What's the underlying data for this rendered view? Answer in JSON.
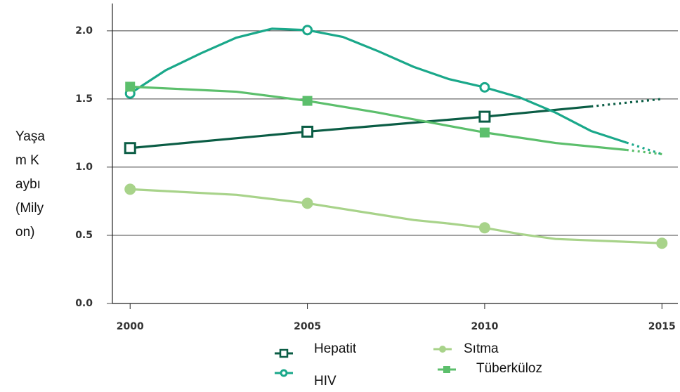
{
  "chart_data": {
    "type": "line",
    "ylabel": "Yaşam Kaybı (Milyon)",
    "xlim": [
      1999.5,
      2015.45
    ],
    "xticks": [
      2000,
      2005,
      2010,
      2015
    ],
    "ylim": [
      0,
      2.2
    ],
    "yticks": [
      {
        "value": 0,
        "label": "0.0"
      },
      0.5,
      {
        "value": 1,
        "label": "1.0"
      },
      1.5,
      {
        "value": 2,
        "label": "2.0"
      }
    ],
    "grid": true,
    "series": [
      {
        "name": "Hepatit",
        "color": "#0b5d45",
        "marker": "square",
        "marker_fill": "open",
        "x": [
          2000,
          2005,
          2010,
          2013,
          2015
        ],
        "values": [
          1.14,
          1.26,
          1.37,
          1.445,
          1.5
        ],
        "marker_x": [
          2000,
          2005,
          2010
        ],
        "dashed_from": 2013
      },
      {
        "name": "HIV",
        "color": "#1aa88a",
        "marker": "circle",
        "marker_fill": "open",
        "x": [
          2000,
          2001,
          2002,
          2003,
          2004,
          2005,
          2006,
          2007,
          2008,
          2009,
          2010,
          2011,
          2012,
          2013,
          2014,
          2015
        ],
        "values": [
          1.54,
          1.71,
          1.835,
          1.95,
          2.015,
          2.005,
          1.955,
          1.85,
          1.735,
          1.645,
          1.585,
          1.51,
          1.4,
          1.265,
          1.18,
          1.095
        ],
        "marker_x": [
          2000,
          2005,
          2010
        ],
        "dashed_from": 2014
      },
      {
        "name": "Sıtma",
        "color": "#a8d38a",
        "marker": "circle",
        "marker_fill": "filled",
        "x": [
          2000,
          2003,
          2005,
          2007,
          2008,
          2009,
          2010,
          2011,
          2012,
          2015
        ],
        "values": [
          0.838,
          0.797,
          0.735,
          0.653,
          0.612,
          0.586,
          0.555,
          0.509,
          0.473,
          0.442
        ],
        "marker_x": [
          2000,
          2005,
          2010,
          2015
        ]
      },
      {
        "name": "Tüberküloz",
        "color": "#5cbf6c",
        "marker": "square",
        "marker_fill": "filled",
        "x": [
          2000,
          2003,
          2005,
          2007,
          2008,
          2010,
          2012,
          2014,
          2015
        ],
        "values": [
          1.59,
          1.553,
          1.486,
          1.4,
          1.35,
          1.254,
          1.177,
          1.126,
          1.095
        ],
        "marker_x": [
          2000,
          2005,
          2010
        ],
        "dashed_from": 2014
      }
    ]
  }
}
